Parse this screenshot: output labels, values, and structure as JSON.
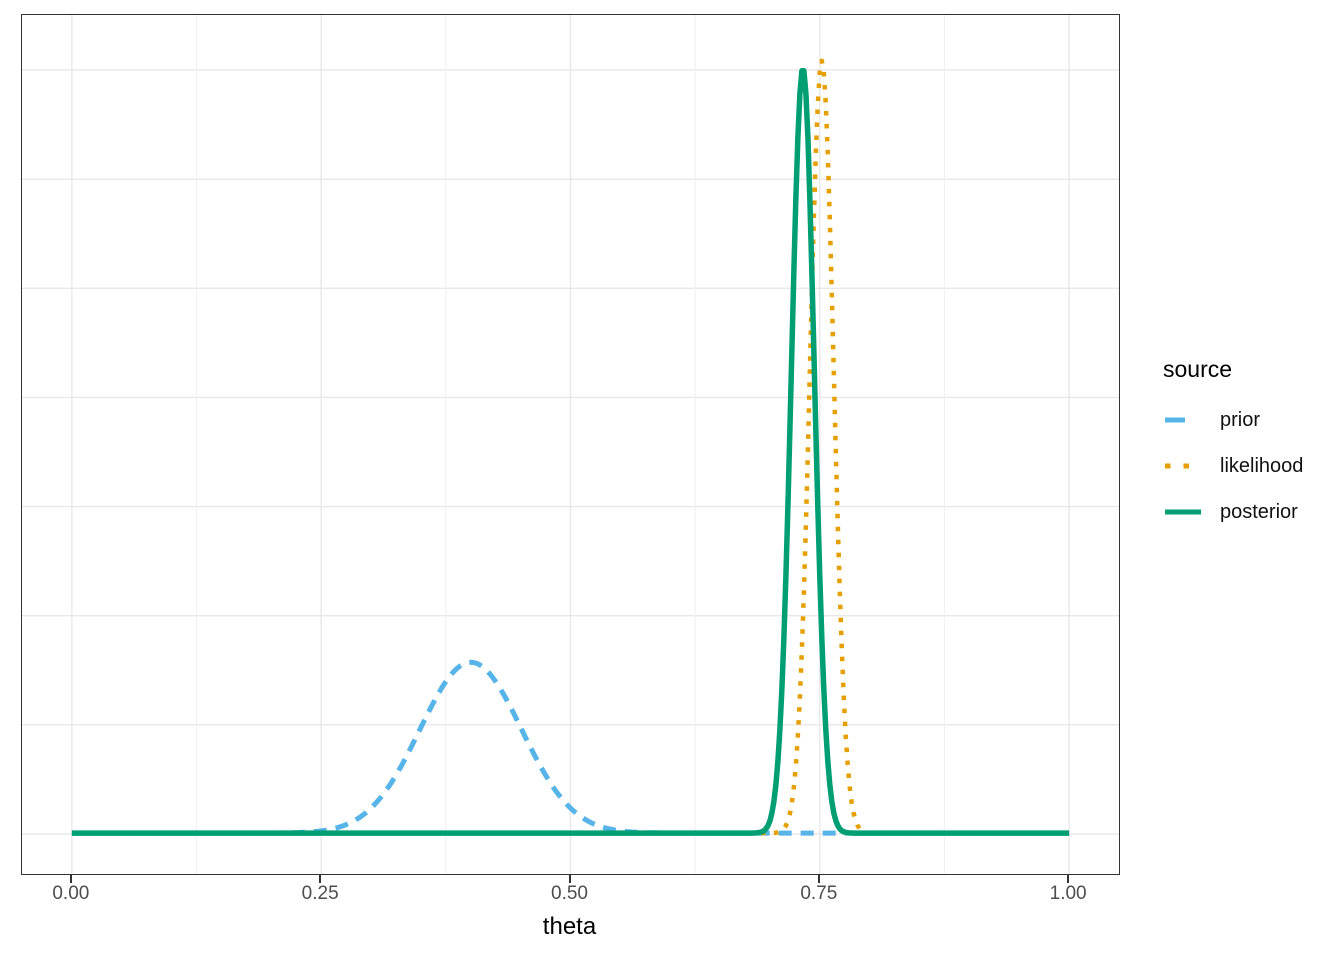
{
  "figure": {
    "background": "#FFFFFF",
    "panel_border_color": "#333333",
    "grid_major_color": "#E8E8E8",
    "grid_minor_color": "#F2F2F2",
    "axis_text_color": "#4D4D4D",
    "axis_title_color": "#000000",
    "tick_mark_color": "#333333"
  },
  "chart_data": {
    "type": "line",
    "title": "",
    "xlabel": "theta",
    "ylabel": "",
    "x_ticks": [
      "0.00",
      "0.25",
      "0.50",
      "0.75",
      "1.00"
    ],
    "x_tick_values": [
      0,
      0.25,
      0.5,
      0.75,
      1.0
    ],
    "x_minor_values": [
      0.125,
      0.375,
      0.625,
      0.875
    ],
    "x_range": [
      -0.05,
      1.05
    ],
    "y_range": [
      -1.7,
      34.0
    ],
    "y_axis_labels_shown": false,
    "grid": true,
    "legend_position": "right",
    "legend_title": "source",
    "curve_shape": "gaussian",
    "curve_domain": [
      0,
      1
    ],
    "series": [
      {
        "name": "prior",
        "color": "#56B4E9",
        "linetype": "dashed",
        "mean": 0.4,
        "sd": 0.051,
        "peak": 7.1
      },
      {
        "name": "likelihood",
        "color": "#E69F00",
        "linetype": "dotted",
        "mean": 0.752,
        "sd": 0.0118,
        "peak": 32.1
      },
      {
        "name": "posterior",
        "color": "#009E73",
        "linetype": "solid",
        "mean": 0.733,
        "sd": 0.0115,
        "peak": 31.8
      }
    ]
  }
}
